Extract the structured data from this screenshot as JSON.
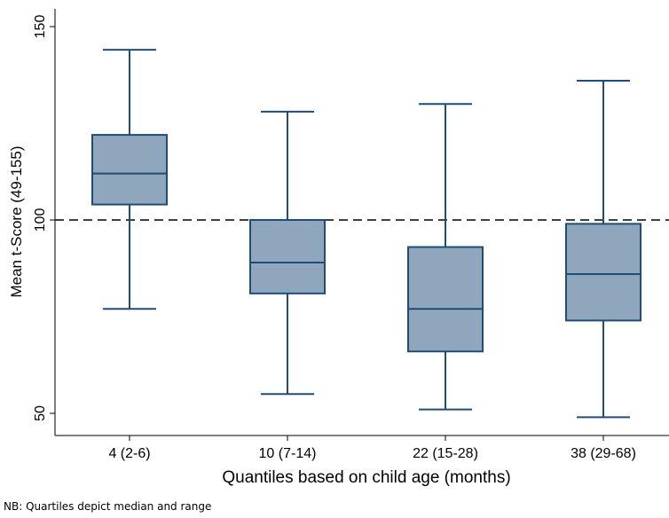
{
  "chart_data": {
    "type": "boxplot",
    "xlabel": "Quantiles based on child age (months)",
    "ylabel": "Mean t-Score (49-155)",
    "ylim": [
      45,
      155
    ],
    "yticks": [
      50,
      100,
      150
    ],
    "categories": [
      "4 (2-6)",
      "10 (7-14)",
      "22 (15-28)",
      "38 (29-68)"
    ],
    "boxes": [
      {
        "min": 77,
        "q1": 104,
        "median": 112,
        "q3": 122,
        "max": 144
      },
      {
        "min": 55,
        "q1": 81,
        "median": 89,
        "q3": 100,
        "max": 128
      },
      {
        "min": 51,
        "q1": 66,
        "median": 77,
        "q3": 93,
        "max": 130
      },
      {
        "min": 49,
        "q1": 74,
        "median": 86,
        "q3": 99,
        "max": 136
      }
    ],
    "reference_line": {
      "value": 100,
      "style": "dashed"
    },
    "box_fill": "#8fa6bd",
    "box_stroke": "#1f4d7a",
    "grid": false,
    "legend": false
  },
  "footnote": "NB: Quartiles depict median and range"
}
